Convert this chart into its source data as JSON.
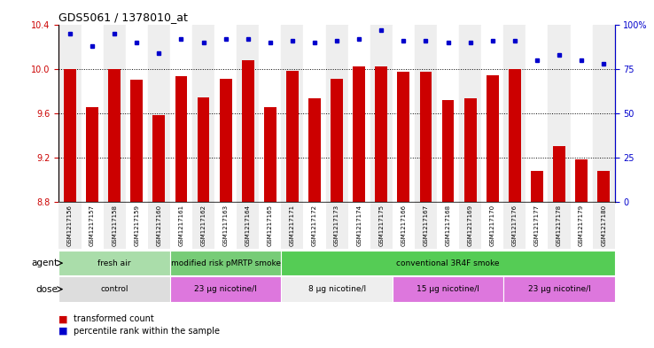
{
  "title": "GDS5061 / 1378010_at",
  "samples": [
    "GSM1217156",
    "GSM1217157",
    "GSM1217158",
    "GSM1217159",
    "GSM1217160",
    "GSM1217161",
    "GSM1217162",
    "GSM1217163",
    "GSM1217164",
    "GSM1217165",
    "GSM1217171",
    "GSM1217172",
    "GSM1217173",
    "GSM1217174",
    "GSM1217175",
    "GSM1217166",
    "GSM1217167",
    "GSM1217168",
    "GSM1217169",
    "GSM1217170",
    "GSM1217176",
    "GSM1217177",
    "GSM1217178",
    "GSM1217179",
    "GSM1217180"
  ],
  "bar_values": [
    10.0,
    9.65,
    10.0,
    9.9,
    9.58,
    9.93,
    9.74,
    9.91,
    10.08,
    9.65,
    9.98,
    9.73,
    9.91,
    10.02,
    10.02,
    9.97,
    9.97,
    9.72,
    9.73,
    9.94,
    10.0,
    9.08,
    9.3,
    9.18,
    9.08
  ],
  "percentile_values": [
    95,
    88,
    95,
    90,
    84,
    92,
    90,
    92,
    92,
    90,
    91,
    90,
    91,
    92,
    97,
    91,
    91,
    90,
    90,
    91,
    91,
    80,
    83,
    80,
    78
  ],
  "bar_color": "#cc0000",
  "dot_color": "#0000cc",
  "ylim_left": [
    8.8,
    10.4
  ],
  "ylim_right": [
    0,
    100
  ],
  "yticks_left": [
    8.8,
    9.2,
    9.6,
    10.0,
    10.4
  ],
  "yticks_right": [
    0,
    25,
    50,
    75,
    100
  ],
  "ytick_labels_right": [
    "0",
    "25",
    "50",
    "75",
    "100%"
  ],
  "grid_values": [
    9.2,
    9.6,
    10.0
  ],
  "agent_groups": [
    {
      "label": "fresh air",
      "start": 0,
      "end": 5,
      "color": "#aaddaa"
    },
    {
      "label": "modified risk pMRTP smoke",
      "start": 5,
      "end": 10,
      "color": "#77cc77"
    },
    {
      "label": "conventional 3R4F smoke",
      "start": 10,
      "end": 25,
      "color": "#55cc55"
    }
  ],
  "dose_groups": [
    {
      "label": "control",
      "start": 0,
      "end": 5,
      "color": "#dddddd"
    },
    {
      "label": "23 μg nicotine/l",
      "start": 5,
      "end": 10,
      "color": "#dd77dd"
    },
    {
      "label": "8 μg nicotine/l",
      "start": 10,
      "end": 15,
      "color": "#eeeeee"
    },
    {
      "label": "15 μg nicotine/l",
      "start": 15,
      "end": 20,
      "color": "#dd77dd"
    },
    {
      "label": "23 μg nicotine/l",
      "start": 20,
      "end": 25,
      "color": "#dd77dd"
    }
  ],
  "agent_label": "agent",
  "dose_label": "dose",
  "legend_bar_label": "transformed count",
  "legend_dot_label": "percentile rank within the sample",
  "background_color": "#ffffff",
  "left_tick_color": "#cc0000",
  "right_tick_color": "#0000cc"
}
